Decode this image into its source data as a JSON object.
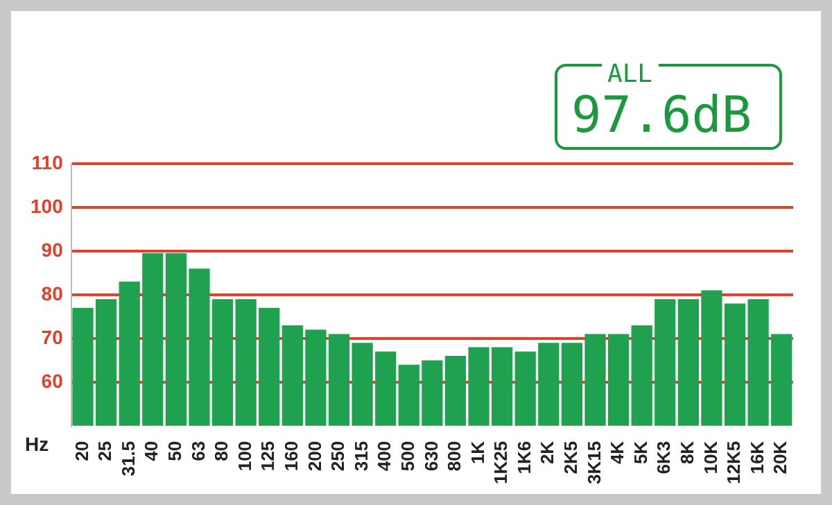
{
  "chart_data": {
    "type": "bar",
    "xlabel": "Hz",
    "annotations": [
      "ALL",
      "97.6dB"
    ],
    "categories": [
      "20",
      "25",
      "31.5",
      "40",
      "50",
      "63",
      "80",
      "100",
      "125",
      "160",
      "200",
      "250",
      "315",
      "400",
      "500",
      "630",
      "800",
      "1K",
      "1K25",
      "1K6",
      "2K",
      "2K5",
      "3K15",
      "4K",
      "5K",
      "6K3",
      "8K",
      "10K",
      "12K5",
      "16K",
      "20K"
    ],
    "values": [
      77,
      79,
      83,
      89.5,
      89.5,
      86,
      79,
      79,
      77,
      73,
      72,
      71,
      69,
      67,
      64,
      65,
      66,
      68,
      68,
      67,
      69,
      69,
      71,
      71,
      73,
      79,
      79,
      81,
      78,
      79,
      71
    ],
    "color": "#1fa14f",
    "ylim": [
      50,
      110
    ],
    "yticks": [
      60,
      70,
      80,
      90,
      100,
      110
    ],
    "grid": "y",
    "legend": false
  }
}
